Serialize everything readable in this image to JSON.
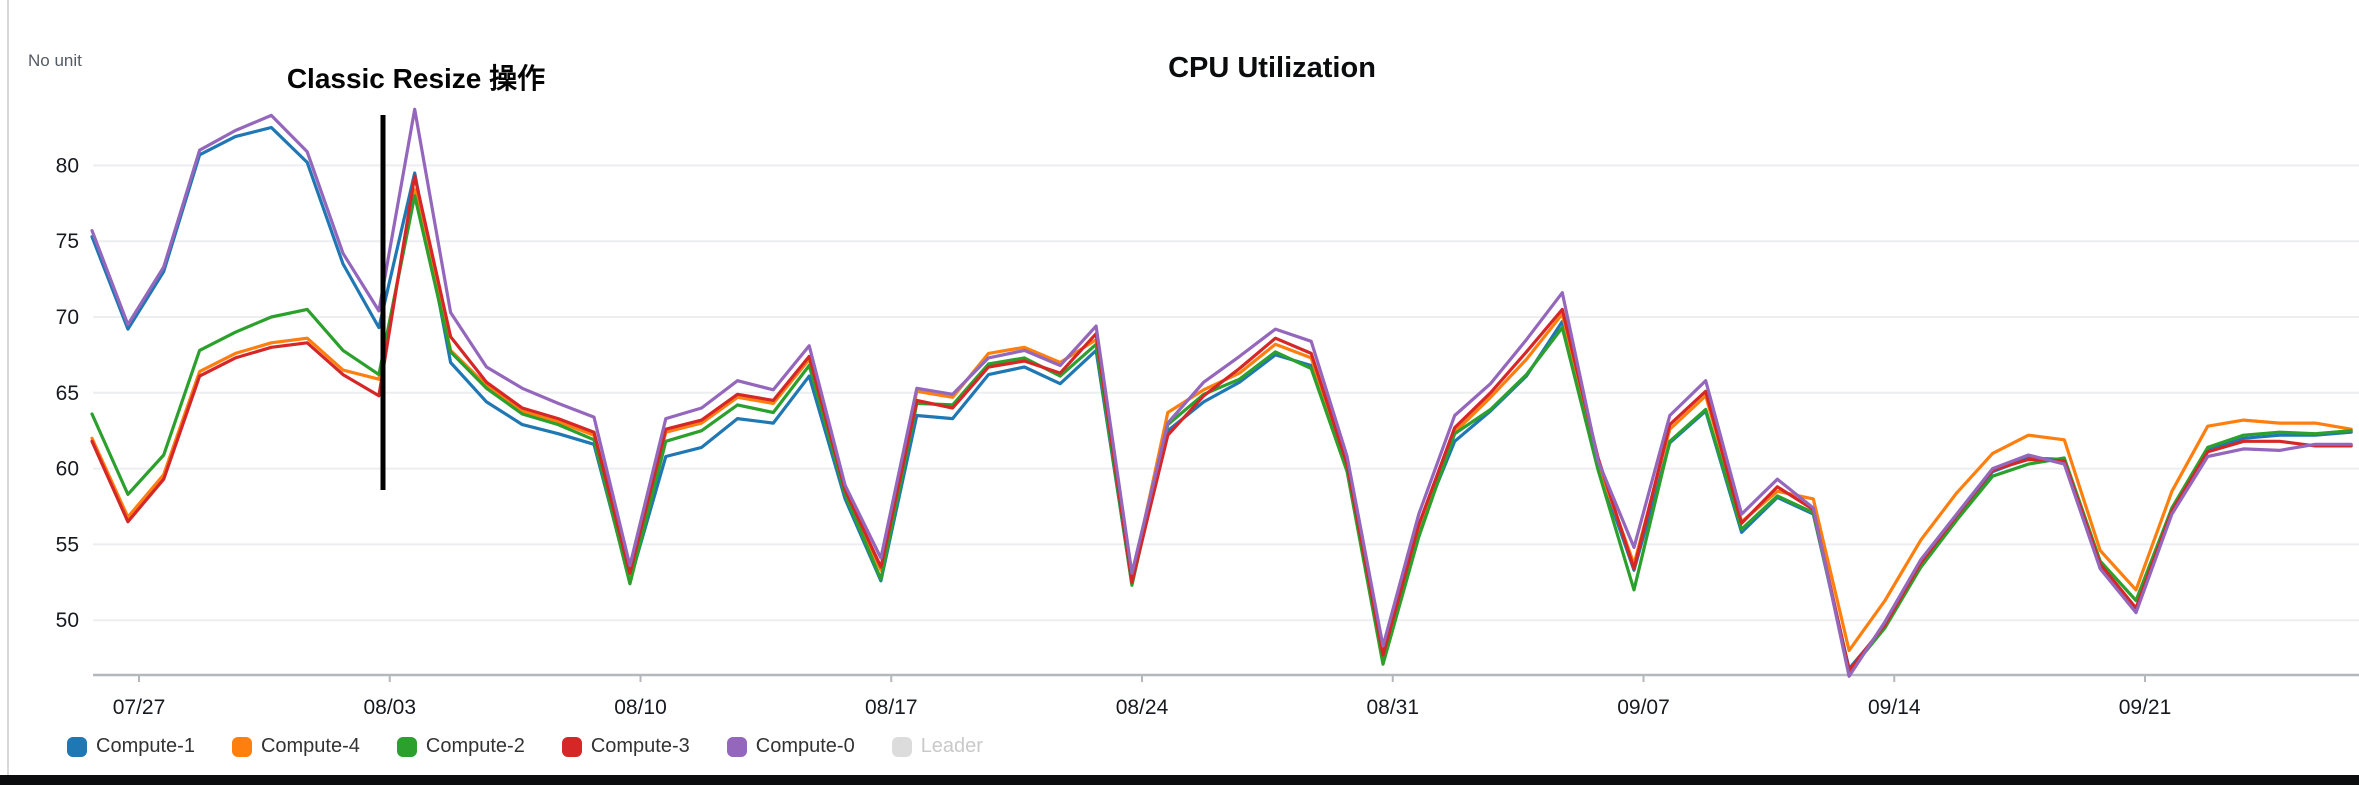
{
  "chart_data": {
    "type": "line",
    "title": "CPU Utilization",
    "unit_label": "No unit",
    "annotation": {
      "label": "Classic Resize 操作"
    },
    "grid": true,
    "legend_position": "bottom",
    "y_axis": {
      "ticks": [
        50,
        55,
        60,
        65,
        70,
        75,
        80
      ],
      "range": [
        46.4,
        85.5
      ]
    },
    "x_axis": {
      "tick_labels": [
        "07/27",
        "08/03",
        "08/10",
        "08/17",
        "08/24",
        "08/31",
        "09/07",
        "09/14",
        "09/21"
      ]
    },
    "legend": [
      {
        "name": "Compute-1",
        "color": "#1f77b4",
        "enabled": true
      },
      {
        "name": "Compute-4",
        "color": "#ff7f0e",
        "enabled": true
      },
      {
        "name": "Compute-2",
        "color": "#2ca02c",
        "enabled": true
      },
      {
        "name": "Compute-3",
        "color": "#d62728",
        "enabled": true
      },
      {
        "name": "Compute-0",
        "color": "#9467bd",
        "enabled": true
      },
      {
        "name": "Leader",
        "color": "#dcdcdc",
        "enabled": false
      }
    ],
    "series": [
      {
        "name": "Compute-1",
        "color": "#1f77b4",
        "values": [
          75.3,
          69.2,
          73.0,
          80.7,
          81.9,
          82.5,
          80.2,
          73.5,
          69.3,
          79.5,
          67.0,
          64.4,
          62.9,
          62.3,
          61.6,
          52.6,
          60.8,
          61.4,
          63.3,
          63.0,
          66.1,
          58.0,
          52.6,
          63.5,
          63.3,
          66.2,
          66.7,
          65.6,
          67.8,
          52.4,
          62.5,
          64.4,
          65.7,
          67.5,
          66.8,
          59.9,
          47.9,
          56.0,
          61.8,
          63.8,
          66.1,
          69.7,
          60.1,
          53.3,
          61.7,
          63.8,
          55.8,
          58.1,
          57.0,
          46.8,
          49.6,
          53.7,
          56.8,
          59.8,
          60.7,
          60.6,
          53.5,
          50.7,
          57.2,
          61.2,
          62.0,
          62.2,
          62.2,
          62.4
        ]
      },
      {
        "name": "Compute-4",
        "color": "#ff7f0e",
        "values": [
          62.0,
          56.8,
          59.6,
          66.4,
          67.6,
          68.3,
          68.6,
          66.5,
          65.9,
          78.4,
          67.8,
          65.5,
          63.8,
          63.1,
          62.2,
          52.9,
          62.4,
          63.0,
          64.7,
          64.3,
          67.2,
          58.5,
          53.3,
          65.1,
          64.7,
          67.6,
          68.0,
          67.0,
          68.5,
          52.7,
          63.7,
          65.2,
          66.3,
          68.2,
          67.3,
          60.2,
          47.8,
          56.2,
          62.4,
          64.7,
          67.2,
          70.2,
          60.3,
          53.7,
          62.6,
          64.8,
          56.5,
          58.5,
          58.0,
          48.0,
          51.3,
          55.3,
          58.4,
          61.0,
          62.2,
          61.9,
          54.6,
          52.0,
          58.5,
          62.8,
          63.2,
          63.0,
          63.0,
          62.6
        ]
      },
      {
        "name": "Compute-2",
        "color": "#2ca02c",
        "values": [
          63.6,
          58.3,
          60.9,
          67.8,
          69.0,
          70.0,
          70.5,
          67.8,
          66.2,
          78.0,
          67.7,
          65.3,
          63.6,
          62.9,
          61.9,
          52.4,
          61.8,
          62.5,
          64.2,
          63.7,
          66.8,
          58.3,
          52.7,
          64.3,
          64.2,
          66.9,
          67.3,
          66.1,
          68.2,
          52.3,
          62.9,
          64.9,
          65.9,
          67.7,
          66.6,
          59.8,
          47.1,
          55.5,
          62.3,
          63.9,
          66.2,
          69.3,
          59.9,
          52.0,
          61.8,
          63.9,
          56.0,
          58.2,
          57.1,
          46.6,
          49.5,
          53.5,
          56.6,
          59.5,
          60.3,
          60.7,
          53.9,
          51.3,
          57.4,
          61.4,
          62.2,
          62.4,
          62.3,
          62.5
        ]
      },
      {
        "name": "Compute-3",
        "color": "#d62728",
        "values": [
          61.8,
          56.5,
          59.3,
          66.1,
          67.3,
          68.0,
          68.3,
          66.2,
          64.8,
          79.3,
          68.7,
          65.7,
          64.0,
          63.3,
          62.4,
          53.1,
          62.6,
          63.2,
          64.9,
          64.5,
          67.4,
          58.6,
          53.5,
          64.5,
          64.0,
          66.7,
          67.1,
          66.3,
          68.9,
          52.5,
          62.2,
          64.8,
          66.6,
          68.6,
          67.6,
          60.3,
          47.7,
          56.3,
          62.7,
          65.0,
          67.7,
          70.5,
          60.7,
          53.4,
          62.9,
          65.1,
          56.4,
          58.8,
          57.3,
          46.7,
          49.7,
          53.8,
          56.9,
          59.9,
          60.6,
          60.5,
          53.7,
          50.8,
          57.2,
          61.1,
          61.8,
          61.8,
          61.5,
          61.5
        ]
      },
      {
        "name": "Compute-0",
        "color": "#9467bd",
        "values": [
          75.7,
          69.5,
          73.3,
          81.0,
          82.3,
          83.3,
          80.9,
          74.2,
          70.4,
          83.7,
          70.3,
          66.7,
          65.3,
          64.3,
          63.4,
          53.6,
          63.3,
          64.0,
          65.8,
          65.2,
          68.1,
          58.9,
          54.1,
          65.3,
          64.9,
          67.3,
          67.8,
          66.8,
          69.4,
          53.1,
          63.0,
          65.7,
          67.4,
          69.2,
          68.4,
          60.8,
          48.3,
          57.0,
          63.5,
          65.6,
          68.5,
          71.6,
          60.5,
          54.8,
          63.5,
          65.8,
          57.0,
          59.3,
          57.4,
          46.3,
          49.9,
          54.0,
          57.0,
          60.0,
          60.9,
          60.3,
          53.4,
          50.5,
          57.0,
          60.8,
          61.3,
          61.2,
          61.6,
          61.6
        ]
      }
    ]
  }
}
